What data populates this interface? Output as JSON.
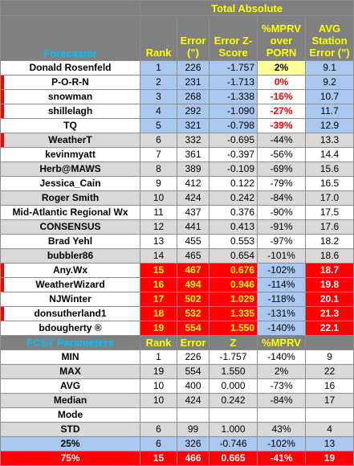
{
  "title": "Total Absolute",
  "headers": {
    "forecaster": "Forecaster",
    "rank": "Rank",
    "error": "Error (\")",
    "zscore": "Error Z-Score",
    "mprv": "%MPRV over PORN",
    "station": "AVG Station Error (\")"
  },
  "rows": [
    {
      "name": "Donald Rosenfeld",
      "rank": "1",
      "error": "226",
      "z": "-1.757",
      "mprv": "2%",
      "station": "9.1"
    },
    {
      "name": "P-O-R-N",
      "rank": "2",
      "error": "231",
      "z": "-1.713",
      "mprv": "0%",
      "station": "9.2"
    },
    {
      "name": "snowman",
      "rank": "3",
      "error": "268",
      "z": "-1.338",
      "mprv": "-16%",
      "station": "10.7"
    },
    {
      "name": "shillelagh",
      "rank": "4",
      "error": "292",
      "z": "-1.090",
      "mprv": "-27%",
      "station": "11.7"
    },
    {
      "name": "TQ",
      "rank": "5",
      "error": "321",
      "z": "-0.798",
      "mprv": "-39%",
      "station": "12.9"
    },
    {
      "name": "WeatherT",
      "rank": "6",
      "error": "332",
      "z": "-0.695",
      "mprv": "-44%",
      "station": "13.3"
    },
    {
      "name": "kevinmyatt",
      "rank": "7",
      "error": "361",
      "z": "-0.397",
      "mprv": "-56%",
      "station": "14.4"
    },
    {
      "name": "Herb@MAWS",
      "rank": "8",
      "error": "389",
      "z": "-0.109",
      "mprv": "-69%",
      "station": "15.6"
    },
    {
      "name": "Jessica_Cain",
      "rank": "9",
      "error": "412",
      "z": "0.122",
      "mprv": "-79%",
      "station": "16.5"
    },
    {
      "name": "Roger Smith",
      "rank": "10",
      "error": "424",
      "z": "0.242",
      "mprv": "-84%",
      "station": "17.0"
    },
    {
      "name": "Mid-Atlantic Regional Wx",
      "rank": "11",
      "error": "437",
      "z": "0.376",
      "mprv": "-90%",
      "station": "17.5"
    },
    {
      "name": "CONSENSUS",
      "rank": "12",
      "error": "441",
      "z": "0.413",
      "mprv": "-91%",
      "station": "17.6"
    },
    {
      "name": "Brad Yehl",
      "rank": "13",
      "error": "455",
      "z": "0.553",
      "mprv": "-97%",
      "station": "18.2"
    },
    {
      "name": "bubbler86",
      "rank": "14",
      "error": "465",
      "z": "0.654",
      "mprv": "-101%",
      "station": "18.6"
    },
    {
      "name": "Any.Wx",
      "rank": "15",
      "error": "467",
      "z": "0.676",
      "mprv": "-102%",
      "station": "18.7"
    },
    {
      "name": "WeatherWizard",
      "rank": "16",
      "error": "494",
      "z": "0.946",
      "mprv": "-114%",
      "station": "19.8"
    },
    {
      "name": "NJWinter",
      "rank": "17",
      "error": "502",
      "z": "1.029",
      "mprv": "-118%",
      "station": "20.1"
    },
    {
      "name": "donsutherland1",
      "rank": "18",
      "error": "532",
      "z": "1.335",
      "mprv": "-131%",
      "station": "21.3"
    },
    {
      "name": "bdougherty ®",
      "rank": "19",
      "error": "554",
      "z": "1.550",
      "mprv": "-140%",
      "station": "22.1"
    }
  ],
  "params_header": {
    "label": "FCST Parameters",
    "rank": "Rank",
    "error": "Error",
    "z": "Z",
    "mprv": "%MPRV",
    "station": ""
  },
  "params": [
    {
      "name": "MIN",
      "rank": "1",
      "error": "226",
      "z": "-1.757",
      "mprv": "-140%",
      "station": "9"
    },
    {
      "name": "MAX",
      "rank": "19",
      "error": "554",
      "z": "1.550",
      "mprv": "2%",
      "station": "22"
    },
    {
      "name": "AVG",
      "rank": "10",
      "error": "400",
      "z": "0.000",
      "mprv": "-73%",
      "station": "16"
    },
    {
      "name": "Median",
      "rank": "10",
      "error": "424",
      "z": "0.242",
      "mprv": "-84%",
      "station": "17"
    },
    {
      "name": "Mode",
      "rank": "",
      "error": "",
      "z": "",
      "mprv": "",
      "station": ""
    },
    {
      "name": "STD",
      "rank": "6",
      "error": "99",
      "z": "1.000",
      "mprv": "43%",
      "station": "4"
    },
    {
      "name": "25%",
      "rank": "6",
      "error": "326",
      "z": "-0.746",
      "mprv": "-102%",
      "station": "13"
    },
    {
      "name": "75%",
      "rank": "15",
      "error": "466",
      "z": "0.665",
      "mprv": "-41%",
      "station": "19"
    }
  ],
  "colors": {
    "header_grey": "#808080",
    "header_yellow_text": "#ffff00",
    "header_blue_text": "#00c0ff",
    "rank_blue": "#a9c7ef",
    "rank_red": "#ff0000",
    "row_grey": "#d9d9d9",
    "highlight_yellow": "#ffff99"
  }
}
